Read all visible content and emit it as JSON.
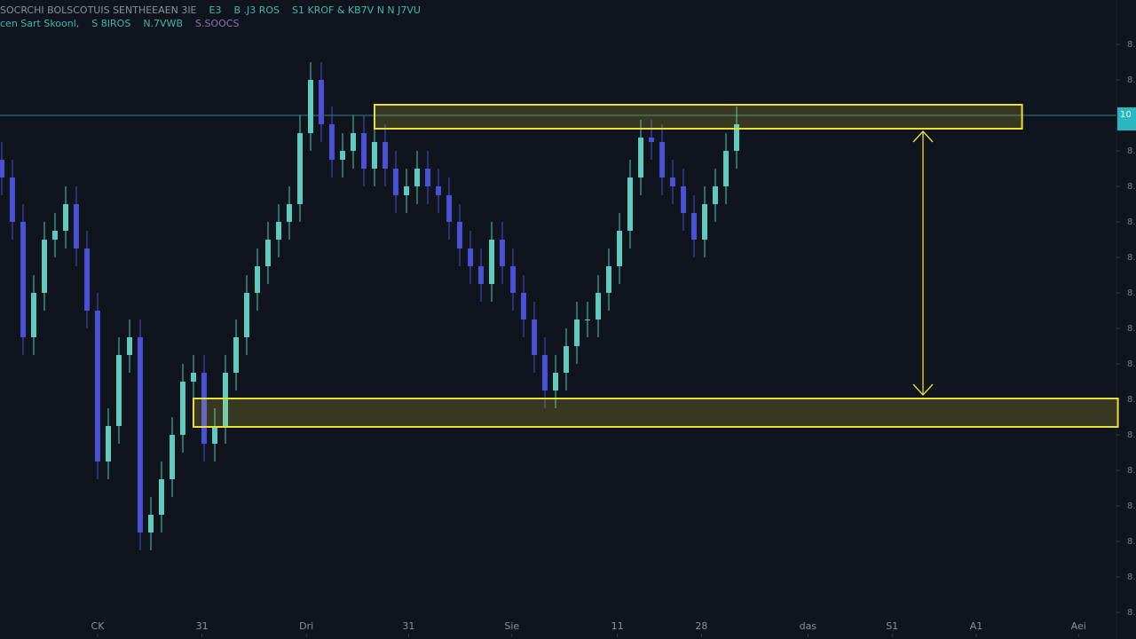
{
  "chart_data": {
    "type": "candlestick",
    "header": [
      "SOCRCHI BOLSCOTUIS SENTHEEAEN 3IE",
      "E3",
      "B .J3 ROS",
      "S1 KROF & KB7V N N J7VU"
    ],
    "subheader": [
      "cen Sart Skoonl,",
      "S 8IROS",
      "N.7VWB",
      "S.SOOCS"
    ],
    "up_color": "#5fc9c0",
    "down_color": "#4b4fd6",
    "zone_color": "#e8dd3a",
    "x": [
      0,
      1,
      2,
      3,
      4,
      5,
      6,
      7,
      8,
      9,
      10,
      11,
      12,
      13,
      14,
      15,
      16,
      17,
      18,
      19,
      20,
      21,
      22,
      23,
      24,
      25,
      26,
      27,
      28,
      29,
      30,
      31,
      32,
      33,
      34,
      35,
      36,
      37,
      38,
      39,
      40,
      41,
      42,
      43,
      44,
      45,
      46,
      47,
      48,
      49,
      50,
      51,
      52,
      53,
      54,
      55,
      56,
      57,
      58,
      59,
      60,
      61,
      62,
      63,
      64,
      65,
      66,
      67,
      68,
      69
    ],
    "open": [
      54,
      52,
      47,
      34,
      39,
      45,
      46,
      49,
      44,
      37,
      20,
      24,
      32,
      34,
      12,
      14,
      18,
      23,
      29,
      30,
      22,
      24,
      30,
      34,
      39,
      42,
      45,
      47,
      49,
      57,
      63,
      58,
      54,
      55,
      57,
      53,
      56,
      53,
      50,
      51,
      53,
      51,
      50,
      47,
      44,
      42,
      40,
      45,
      42,
      39,
      36,
      32,
      28,
      30,
      33,
      36,
      36,
      39,
      42,
      46,
      52,
      56.5,
      56,
      52,
      51,
      48,
      45,
      49,
      51,
      55
    ],
    "high": [
      56,
      54,
      49,
      41,
      47,
      48,
      51,
      51,
      46,
      39,
      26,
      34,
      36,
      36,
      16,
      20,
      25,
      31,
      32,
      32,
      26,
      32,
      36,
      41,
      44,
      47,
      49,
      51,
      59,
      65,
      65,
      60,
      57,
      59,
      59,
      58,
      58,
      55,
      53,
      55,
      55,
      53,
      52,
      49,
      46,
      44,
      47,
      47,
      44,
      41,
      38,
      34,
      32,
      35,
      38,
      38,
      41,
      44,
      48,
      54,
      58.5,
      58.5,
      58,
      54,
      53,
      50,
      51,
      53,
      57,
      60
    ],
    "low": [
      50,
      45,
      32,
      32,
      37,
      43,
      44,
      42,
      35,
      18,
      18,
      22,
      30,
      10,
      10,
      12,
      16,
      21,
      27,
      20,
      20,
      22,
      28,
      32,
      37,
      40,
      43,
      45,
      47,
      55,
      56,
      52,
      52,
      53,
      51,
      51,
      51,
      48,
      48,
      49,
      49,
      48,
      45,
      42,
      40,
      38,
      38,
      40,
      37,
      34,
      30,
      26,
      26,
      28,
      31,
      34,
      34,
      37,
      40,
      44,
      50,
      54,
      50,
      49,
      46,
      43,
      43,
      47,
      49,
      53
    ],
    "close": [
      52,
      47,
      34,
      39,
      45,
      46,
      49,
      44,
      37,
      20,
      24,
      32,
      34,
      12,
      14,
      18,
      23,
      29,
      30,
      22,
      24,
      30,
      34,
      39,
      42,
      45,
      47,
      49,
      57,
      63,
      58,
      54,
      55,
      57,
      53,
      56,
      53,
      50,
      51,
      53,
      51,
      50,
      47,
      44,
      42,
      40,
      45,
      42,
      39,
      36,
      32,
      28,
      30,
      33,
      36,
      36,
      39,
      42,
      46,
      52,
      56.5,
      56,
      52,
      51,
      48,
      45,
      49,
      51,
      55,
      58
    ],
    "xlim": [
      0,
      105
    ],
    "ylim": [
      0,
      72
    ],
    "xticks": [
      {
        "value": 9,
        "label": "CK"
      },
      {
        "value": 18.8,
        "label": "31"
      },
      {
        "value": 28.6,
        "label": "Dri"
      },
      {
        "value": 38.2,
        "label": "31"
      },
      {
        "value": 47.9,
        "label": "Sie"
      },
      {
        "value": 57.8,
        "label": "11"
      },
      {
        "value": 65.7,
        "label": "28"
      },
      {
        "value": 75.7,
        "label": "das"
      },
      {
        "value": 83.6,
        "label": "S1"
      },
      {
        "value": 91.5,
        "label": "A1"
      },
      {
        "value": 101.1,
        "label": "Aei"
      }
    ],
    "yticks": [
      {
        "value": 67,
        "label": "8."
      },
      {
        "value": 63,
        "label": "8."
      },
      {
        "value": 55,
        "label": "8."
      },
      {
        "value": 51,
        "label": "8."
      },
      {
        "value": 47,
        "label": "8."
      },
      {
        "value": 43,
        "label": "8."
      },
      {
        "value": 39,
        "label": "8."
      },
      {
        "value": 35,
        "label": "8."
      },
      {
        "value": 31,
        "label": "8."
      },
      {
        "value": 27,
        "label": "8."
      },
      {
        "value": 23,
        "label": "8."
      },
      {
        "value": 19,
        "label": "8."
      },
      {
        "value": 15,
        "label": "8."
      },
      {
        "value": 11,
        "label": "8."
      },
      {
        "value": 7,
        "label": "8."
      },
      {
        "value": 3,
        "label": "8."
      }
    ],
    "current_price": {
      "value": 59,
      "label": "10"
    },
    "zones": [
      {
        "xlim": [
          35,
          95.8
        ],
        "ylim": [
          57.5,
          60.2
        ]
      },
      {
        "xlim": [
          18,
          104.8
        ],
        "ylim": [
          23.9,
          27.1
        ]
      }
    ],
    "arrow": {
      "x": 86.5,
      "from": 57.2,
      "to": 27.5
    }
  }
}
